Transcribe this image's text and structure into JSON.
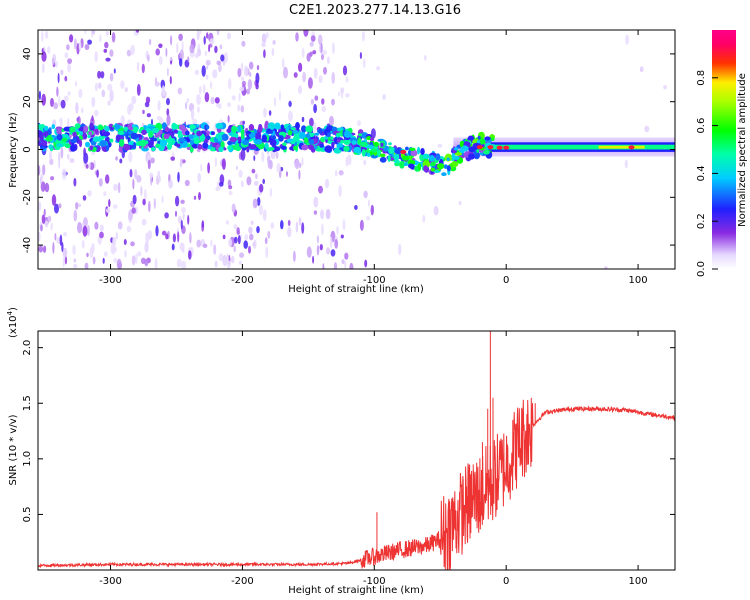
{
  "title": "C2E1.2023.277.14.13.G16",
  "colors": {
    "line": "#ee3333",
    "frame": "#000000"
  },
  "chart_data": [
    {
      "type": "heatmap",
      "xlabel": "Height of straight line (km)",
      "ylabel": "Frequency (Hz)",
      "xlim": [
        -355,
        128
      ],
      "ylim": [
        -50,
        50
      ],
      "x_ticks": [
        -300,
        -200,
        -100,
        0,
        100
      ],
      "x_tick_labels": [
        "-300",
        "-200",
        "-100",
        "0",
        "100"
      ],
      "y_ticks": [
        -40,
        -20,
        0,
        20,
        40
      ],
      "y_tick_labels": [
        "-40",
        "-20",
        "0",
        "20",
        "40"
      ],
      "colorbar": {
        "label": "Normalized spectral amplitude",
        "range": [
          0,
          1
        ],
        "ticks": [
          0.0,
          0.2,
          0.4,
          0.6,
          0.8
        ],
        "tick_labels": [
          "0.0",
          "0.2",
          "0.4",
          "0.6",
          "0.8"
        ],
        "colormap": "white-purple-blue-cyan-green-yellow-red-magenta"
      },
      "ridge": [
        {
          "x": -355,
          "y": 5
        },
        {
          "x": -300,
          "y": 5
        },
        {
          "x": -250,
          "y": 5
        },
        {
          "x": -200,
          "y": 5
        },
        {
          "x": -150,
          "y": 5
        },
        {
          "x": -120,
          "y": 4
        },
        {
          "x": -100,
          "y": 1
        },
        {
          "x": -80,
          "y": -3
        },
        {
          "x": -60,
          "y": -5
        },
        {
          "x": -45,
          "y": -7
        },
        {
          "x": -35,
          "y": -1
        },
        {
          "x": -20,
          "y": 2
        },
        {
          "x": 0,
          "y": 1
        },
        {
          "x": 50,
          "y": 1
        },
        {
          "x": 100,
          "y": 1
        },
        {
          "x": 128,
          "y": 1
        }
      ]
    },
    {
      "type": "line",
      "xlabel": "Height of straight line (km)",
      "ylabel": "SNR (10 * v/v)",
      "y_multiplier_label": "(x10",
      "y_multiplier_exp": "4",
      "xlim": [
        -355,
        128
      ],
      "ylim": [
        0,
        2.15
      ],
      "x_ticks": [
        -300,
        -200,
        -100,
        0,
        100
      ],
      "x_tick_labels": [
        "-300",
        "-200",
        "-100",
        "0",
        "100"
      ],
      "y_ticks": [
        0.5,
        1.0,
        1.5,
        2.0
      ],
      "y_tick_labels": [
        "0.5",
        "1.0",
        "1.5",
        "2.0"
      ],
      "series": [
        {
          "x": [
            -355,
            -300,
            -250,
            -200,
            -150,
            -120,
            -100,
            -80,
            -60,
            -50,
            -40,
            -30,
            -20,
            -14,
            -10,
            -5,
            0,
            10,
            20,
            30,
            50,
            70,
            90,
            110,
            128
          ],
          "y": [
            0.04,
            0.05,
            0.05,
            0.05,
            0.05,
            0.06,
            0.12,
            0.18,
            0.22,
            0.28,
            0.42,
            0.58,
            0.68,
            0.75,
            0.8,
            0.88,
            0.95,
            1.15,
            1.3,
            1.42,
            1.45,
            1.45,
            1.44,
            1.4,
            1.37
          ]
        }
      ],
      "spikes": [
        {
          "x": -12,
          "y": 2.15
        },
        {
          "x": -14,
          "y": 1.45
        },
        {
          "x": -10,
          "y": 1.55
        },
        {
          "x": -18,
          "y": 1.15
        },
        {
          "x": -25,
          "y": 0.95
        },
        {
          "x": -30,
          "y": 0.75
        },
        {
          "x": -98,
          "y": 0.52
        },
        {
          "x": 5,
          "y": 1.35
        },
        {
          "x": 12,
          "y": 1.45
        },
        {
          "x": 22,
          "y": 1.5
        }
      ]
    }
  ]
}
